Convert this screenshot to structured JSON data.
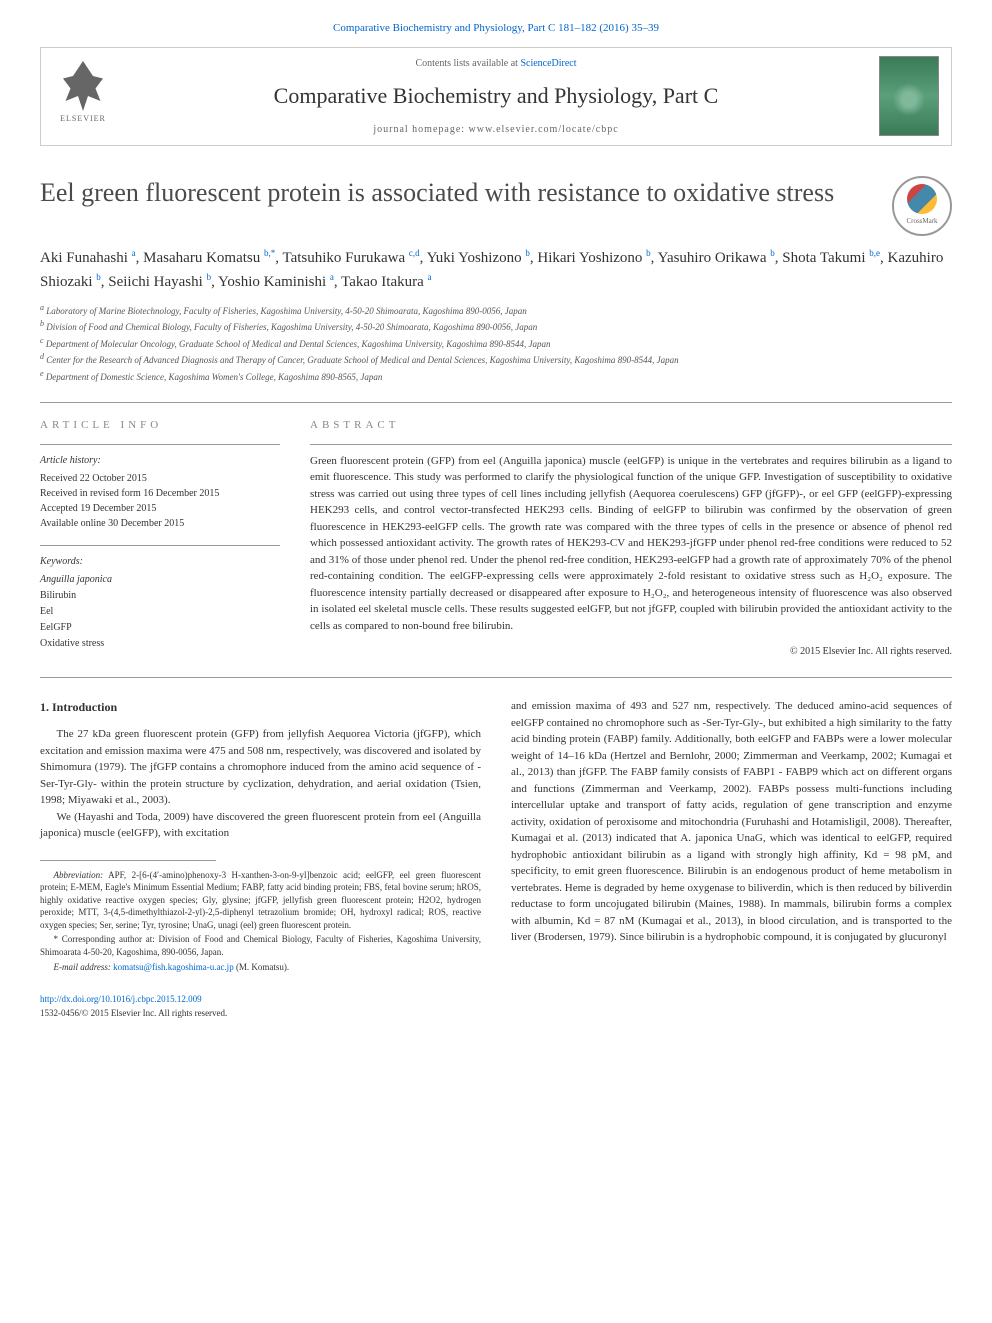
{
  "header": {
    "topLink": "Comparative Biochemistry and Physiology, Part C 181–182 (2016) 35–39",
    "contentsLine": "Contents lists available at ",
    "contentsLinkText": "ScienceDirect",
    "journalTitle": "Comparative Biochemistry and Physiology, Part C",
    "homepage": "journal homepage: www.elsevier.com/locate/cbpc",
    "publisherName": "ELSEVIER",
    "crossmarkLabel": "CrossMark"
  },
  "article": {
    "title": "Eel green fluorescent protein is associated with resistance to oxidative stress",
    "authors": [
      {
        "name": "Aki Funahashi",
        "aff": "a"
      },
      {
        "name": "Masaharu Komatsu",
        "aff": "b,*"
      },
      {
        "name": "Tatsuhiko Furukawa",
        "aff": "c,d"
      },
      {
        "name": "Yuki Yoshizono",
        "aff": "b"
      },
      {
        "name": "Hikari Yoshizono",
        "aff": "b"
      },
      {
        "name": "Yasuhiro Orikawa",
        "aff": "b"
      },
      {
        "name": "Shota Takumi",
        "aff": "b,e"
      },
      {
        "name": "Kazuhiro Shiozaki",
        "aff": "b"
      },
      {
        "name": "Seiichi Hayashi",
        "aff": "b"
      },
      {
        "name": "Yoshio Kaminishi",
        "aff": "a"
      },
      {
        "name": "Takao Itakura",
        "aff": "a"
      }
    ],
    "affiliations": [
      {
        "key": "a",
        "text": "Laboratory of Marine Biotechnology, Faculty of Fisheries, Kagoshima University, 4-50-20 Shimoarata, Kagoshima 890-0056, Japan"
      },
      {
        "key": "b",
        "text": "Division of Food and Chemical Biology, Faculty of Fisheries, Kagoshima University, 4-50-20 Shimoarata, Kagoshima 890-0056, Japan"
      },
      {
        "key": "c",
        "text": "Department of Molecular Oncology, Graduate School of Medical and Dental Sciences, Kagoshima University, Kagoshima 890-8544, Japan"
      },
      {
        "key": "d",
        "text": "Center for the Research of Advanced Diagnosis and Therapy of Cancer, Graduate School of Medical and Dental Sciences, Kagoshima University, Kagoshima 890-8544, Japan"
      },
      {
        "key": "e",
        "text": "Department of Domestic Science, Kagoshima Women's College, Kagoshima 890-8565, Japan"
      }
    ]
  },
  "articleInfo": {
    "heading": "ARTICLE INFO",
    "historyLabel": "Article history:",
    "history": [
      "Received 22 October 2015",
      "Received in revised form 16 December 2015",
      "Accepted 19 December 2015",
      "Available online 30 December 2015"
    ],
    "keywordsLabel": "Keywords:",
    "keywords": [
      "Anguilla japonica",
      "Bilirubin",
      "Eel",
      "EelGFP",
      "Oxidative stress"
    ]
  },
  "abstract": {
    "heading": "ABSTRACT",
    "text": "Green fluorescent protein (GFP) from eel (Anguilla japonica) muscle (eelGFP) is unique in the vertebrates and requires bilirubin as a ligand to emit fluorescence. This study was performed to clarify the physiological function of the unique GFP. Investigation of susceptibility to oxidative stress was carried out using three types of cell lines including jellyfish (Aequorea coerulescens) GFP (jfGFP)-, or eel GFP (eelGFP)-expressing HEK293 cells, and control vector-transfected HEK293 cells. Binding of eelGFP to bilirubin was confirmed by the observation of green fluorescence in HEK293-eelGFP cells. The growth rate was compared with the three types of cells in the presence or absence of phenol red which possessed antioxidant activity. The growth rates of HEK293-CV and HEK293-jfGFP under phenol red-free conditions were reduced to 52 and 31% of those under phenol red. Under the phenol red-free condition, HEK293-eelGFP had a growth rate of approximately 70% of the phenol red-containing condition. The eelGFP-expressing cells were approximately 2-fold resistant to oxidative stress such as H₂O₂ exposure. The fluorescence intensity partially decreased or disappeared after exposure to H₂O₂, and heterogeneous intensity of fluorescence was also observed in isolated eel skeletal muscle cells. These results suggested eelGFP, but not jfGFP, coupled with bilirubin provided the antioxidant activity to the cells as compared to non-bound free bilirubin.",
    "copyright": "© 2015 Elsevier Inc. All rights reserved."
  },
  "body": {
    "sectionHeading": "1. Introduction",
    "col1p1": "The 27 kDa green fluorescent protein (GFP) from jellyfish Aequorea Victoria (jfGFP), which excitation and emission maxima were 475 and 508 nm, respectively, was discovered and isolated by Shimomura (1979). The jfGFP contains a chromophore induced from the amino acid sequence of -Ser-Tyr-Gly- within the protein structure by cyclization, dehydration, and aerial oxidation (Tsien, 1998; Miyawaki et al., 2003).",
    "col1p2": "We (Hayashi and Toda, 2009) have discovered the green fluorescent protein from eel (Anguilla japonica) muscle (eelGFP), with excitation",
    "col2p1": "and emission maxima of 493 and 527 nm, respectively. The deduced amino-acid sequences of eelGFP contained no chromophore such as -Ser-Tyr-Gly-, but exhibited a high similarity to the fatty acid binding protein (FABP) family. Additionally, both eelGFP and FABPs were a lower molecular weight of 14–16 kDa (Hertzel and Bernlohr, 2000; Zimmerman and Veerkamp, 2002; Kumagai et al., 2013) than jfGFP. The FABP family consists of FABP1 - FABP9 which act on different organs and functions (Zimmerman and Veerkamp, 2002). FABPs possess multi-functions including intercellular uptake and transport of fatty acids, regulation of gene transcription and enzyme activity, oxidation of peroxisome and mitochondria (Furuhashi and Hotamisligil, 2008). Thereafter, Kumagai et al. (2013) indicated that A. japonica UnaG, which was identical to eelGFP, required hydrophobic antioxidant bilirubin as a ligand with strongly high affinity, Kd = 98 pM, and specificity, to emit green fluorescence. Bilirubin is an endogenous product of heme metabolism in vertebrates. Heme is degraded by heme oxygenase to biliverdin, which is then reduced by biliverdin reductase to form uncojugated bilirubin (Maines, 1988). In mammals, bilirubin forms a complex with albumin, Kd = 87 nM (Kumagai et al., 2013), in blood circulation, and is transported to the liver (Brodersen, 1979). Since bilirubin is a hydrophobic compound, it is conjugated by glucuronyl"
  },
  "footnotes": {
    "abbrevLabel": "Abbreviation:",
    "abbrevText": " APF, 2-[6-(4′-amino)phenoxy-3 H-xanthen-3-on-9-yl]benzoic acid; eelGFP, eel green fluorescent protein; E-MEM, Eagle's Minimum Essential Medium; FABP, fatty acid binding protein; FBS, fetal bovine serum; hROS, highly oxidative reactive oxygen species; Gly, glysine; jfGFP, jellyfish green fluorescent protein; H2O2, hydrogen peroxide; MTT, 3-(4,5-dimethylthiazol-2-yl)-2,5-diphenyl tetrazolium bromide; OH, hydroxyl radical; ROS, reactive oxygen species; Ser, serine; Tyr, tyrosine; UnaG, unagi (eel) green fluorescent protein.",
    "corresponding": "* Corresponding author at: Division of Food and Chemical Biology, Faculty of Fisheries, Kagoshima University, Shimoarata 4-50-20, Kagoshima, 890-0056, Japan.",
    "emailLabel": "E-mail address: ",
    "email": "komatsu@fish.kagoshima-u.ac.jp",
    "emailSuffix": " (M. Komatsu)."
  },
  "footer": {
    "doi": "http://dx.doi.org/10.1016/j.cbpc.2015.12.009",
    "issn": "1532-0456/© 2015 Elsevier Inc. All rights reserved."
  },
  "colors": {
    "link": "#0066cc",
    "text": "#333333",
    "border": "#cccccc",
    "gray": "#888888"
  }
}
